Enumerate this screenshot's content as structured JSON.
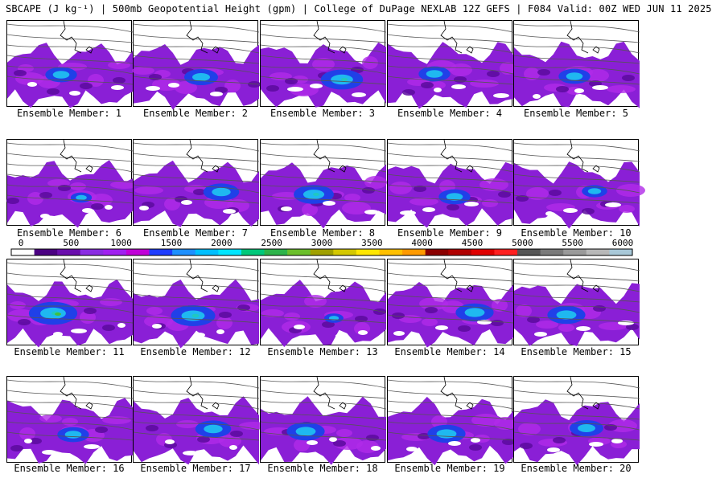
{
  "title": "SBCAPE (J kg⁻¹) | 500mb Geopotential Height (gpm) | College of DuPage NEXLAB 12Z GEFS | F084 Valid: 00Z WED JUN 11 2025",
  "label_prefix": "Ensemble Member: ",
  "members": [
    1,
    2,
    3,
    4,
    5,
    6,
    7,
    8,
    9,
    10,
    11,
    12,
    13,
    14,
    15,
    16,
    17,
    18,
    19,
    20
  ],
  "member_intensity": [
    0.45,
    0.5,
    0.7,
    0.45,
    0.45,
    0.2,
    0.55,
    0.65,
    0.45,
    0.3,
    0.85,
    0.75,
    0.15,
    0.6,
    0.6,
    0.45,
    0.55,
    0.6,
    0.6,
    0.5
  ],
  "colorbar": {
    "ticks": [
      "0",
      "500",
      "1000",
      "1500",
      "2000",
      "2500",
      "3000",
      "3500",
      "4000",
      "4500",
      "5000",
      "5500",
      "6000"
    ],
    "min": 0,
    "max": 6000,
    "colors": [
      "#ffffff",
      "#4b0082",
      "#6a0dad",
      "#8a2be2",
      "#a020f0",
      "#c000d8",
      "#1e3cff",
      "#1e90ff",
      "#00bfff",
      "#00e5ff",
      "#00c87a",
      "#2db34a",
      "#6bbf2a",
      "#a0a000",
      "#d4c800",
      "#ffe600",
      "#ffc000",
      "#ff9a00",
      "#8b0000",
      "#b00000",
      "#e00000",
      "#ff2020",
      "#555555",
      "#7a7a7a",
      "#9a9a9a",
      "#b8b8b8",
      "#a8c8d8"
    ]
  }
}
